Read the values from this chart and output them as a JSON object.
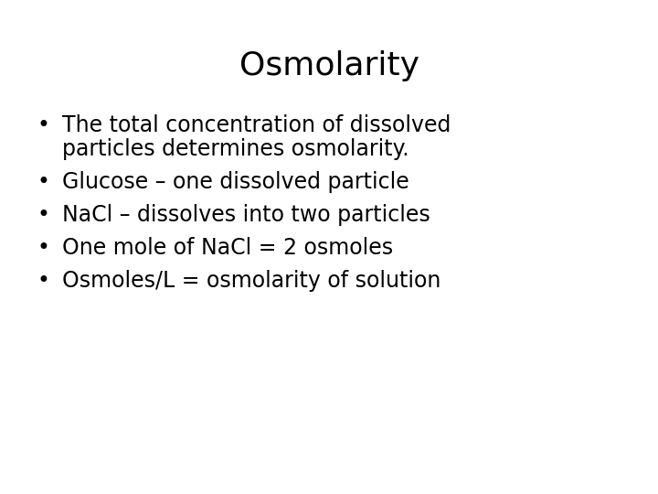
{
  "title": "Osmolarity",
  "title_fontsize": 26,
  "title_fontweight": "normal",
  "background_color": "#ffffff",
  "text_color": "#000000",
  "bullet_char": "•",
  "bullet_fontsize": 17,
  "text_fontsize": 17,
  "font_family": "DejaVu Sans",
  "bullets": [
    {
      "lines": [
        "The total concentration of dissolved",
        "particles determines osmolarity."
      ]
    },
    {
      "lines": [
        "Glucose – one dissolved particle"
      ]
    },
    {
      "lines": [
        "NaCl – dissolves into two particles"
      ]
    },
    {
      "lines": [
        "One mole of NaCl = 2 osmoles"
      ]
    },
    {
      "lines": [
        "Osmoles/L = osmolarity of solution"
      ]
    }
  ]
}
